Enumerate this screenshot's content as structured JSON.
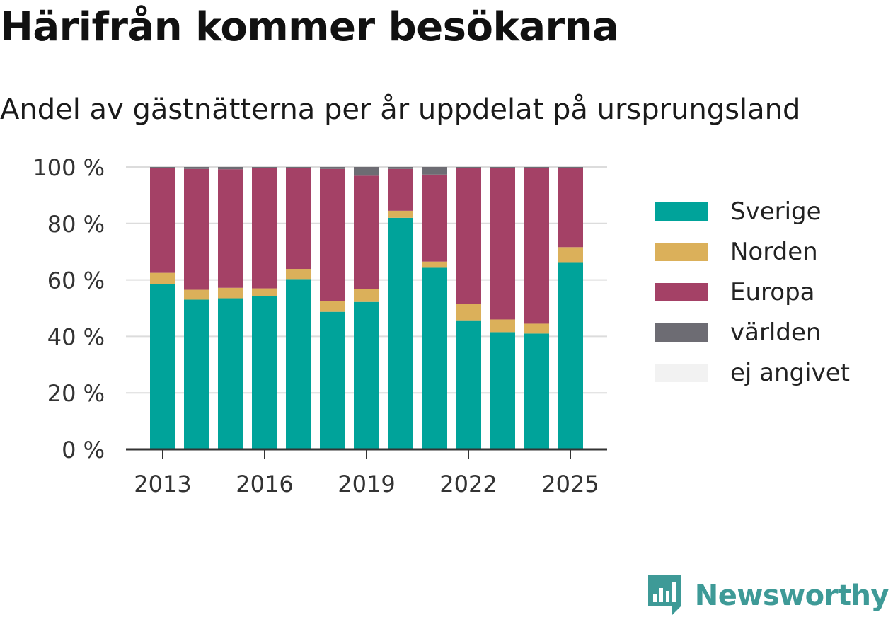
{
  "title": "Härifrån kommer besökarna",
  "subtitle": "Andel av gästnätterna per år uppdelat på ursprungsland",
  "brand": {
    "name": "Newsworthy",
    "icon": "newsworthy-logo-icon",
    "color": "#3e9a97"
  },
  "chart_data": {
    "type": "bar",
    "stacked": true,
    "categories": [
      "2013",
      "2014",
      "2015",
      "2016",
      "2017",
      "2018",
      "2019",
      "2020",
      "2021",
      "2022",
      "2023",
      "2024",
      "2025"
    ],
    "xtick_labels": [
      "2013",
      "2016",
      "2019",
      "2022",
      "2025"
    ],
    "ytick_labels": [
      "0 %",
      "20 %",
      "40 %",
      "60 %",
      "80 %",
      "100 %"
    ],
    "yticks": [
      0,
      20,
      40,
      60,
      80,
      100
    ],
    "ylim": [
      0,
      100
    ],
    "grid": true,
    "legend_position": "right",
    "series": [
      {
        "name": "Sverige",
        "color": "#00a39a",
        "values": [
          58.5,
          53.0,
          53.5,
          54.3,
          60.3,
          48.7,
          52.2,
          82.0,
          64.3,
          45.7,
          41.5,
          41.0,
          66.3
        ]
      },
      {
        "name": "Norden",
        "color": "#dbb05a",
        "values": [
          4.0,
          3.5,
          3.7,
          2.7,
          3.6,
          3.7,
          4.5,
          2.5,
          2.2,
          5.8,
          4.5,
          3.5,
          5.3
        ]
      },
      {
        "name": "Europa",
        "color": "#a44166",
        "values": [
          37.0,
          42.8,
          42.0,
          42.7,
          35.6,
          46.9,
          40.2,
          14.8,
          30.8,
          48.2,
          53.7,
          55.2,
          28.0
        ]
      },
      {
        "name": "världen",
        "color": "#6d6c73",
        "values": [
          0.5,
          0.7,
          0.8,
          0.3,
          0.5,
          0.7,
          3.1,
          0.7,
          2.7,
          0.3,
          0.3,
          0.3,
          0.4
        ]
      },
      {
        "name": "ej angivet",
        "color": "#f2f2f2",
        "values": [
          0,
          0,
          0,
          0,
          0,
          0,
          0,
          0,
          0,
          0,
          0,
          0,
          0
        ]
      }
    ]
  }
}
